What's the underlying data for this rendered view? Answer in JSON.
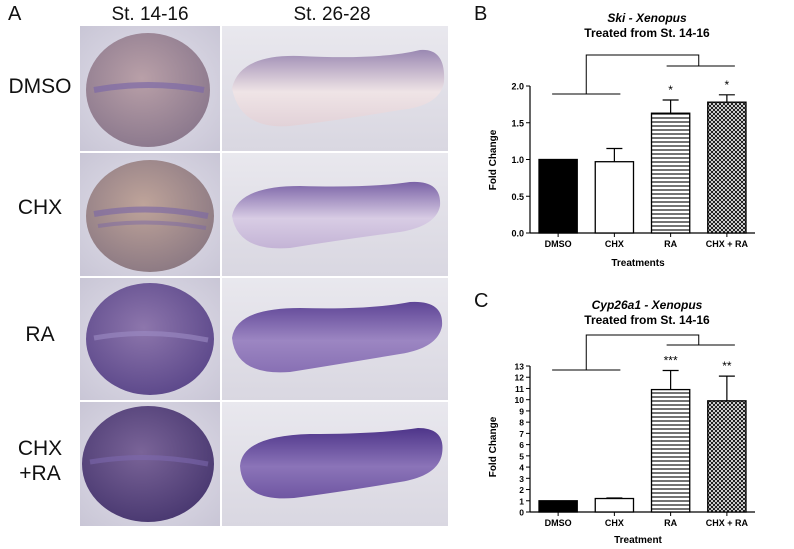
{
  "panel_a": {
    "letter": "A",
    "columns": [
      "St. 14-16",
      "St. 26-28"
    ],
    "rows": [
      {
        "label_lines": [
          "DMSO"
        ]
      },
      {
        "label_lines": [
          "CHX"
        ]
      },
      {
        "label_lines": [
          "RA"
        ]
      },
      {
        "label_lines": [
          "CHX",
          "+RA"
        ]
      }
    ],
    "stain_colors": {
      "dmso": "#a898b8",
      "chx": "#9a88b6",
      "ra": "#6e56a2",
      "chx_ra": "#5a3e96"
    }
  },
  "panel_b": {
    "letter": "B"
  },
  "panel_c": {
    "letter": "C"
  },
  "chart_data": [
    {
      "type": "bar",
      "title": "Ski - Xenopus",
      "subtitle": "Treated from St. 14-16",
      "xlabel": "Treatments",
      "ylabel": "Fold Change",
      "categories": [
        "DMSO",
        "CHX",
        "RA",
        "CHX + RA"
      ],
      "values": [
        1.0,
        0.97,
        1.63,
        1.78
      ],
      "errors": [
        0.0,
        0.18,
        0.18,
        0.1
      ],
      "ylim": [
        0,
        2.0
      ],
      "yticks": [
        "0.0",
        "0.5",
        "1.0",
        "1.5",
        "2.0"
      ],
      "ytick_values": [
        0,
        0.5,
        1.0,
        1.5,
        2.0
      ],
      "fills": [
        "solid",
        "white",
        "hlines",
        "crosshatch"
      ],
      "significance": [
        "",
        "",
        "*",
        "*"
      ],
      "comparison": "DMSO/CHX vs RA/CHX + RA"
    },
    {
      "type": "bar",
      "title": "Cyp26a1 - Xenopus",
      "subtitle": "Treated from  St. 14-16",
      "xlabel": "Treatment",
      "ylabel": "Fold  Change",
      "categories": [
        "DMSO",
        "CHX",
        "RA",
        "CHX + RA"
      ],
      "values": [
        1.0,
        1.2,
        10.9,
        9.9
      ],
      "errors": [
        0.0,
        0.05,
        1.7,
        2.2
      ],
      "ylim": [
        0,
        13
      ],
      "yticks": [
        "0",
        "1",
        "2",
        "3",
        "4",
        "5",
        "6",
        "7",
        "8",
        "9",
        "10",
        "11",
        "12",
        "13"
      ],
      "ytick_values": [
        0,
        1,
        2,
        3,
        4,
        5,
        6,
        7,
        8,
        9,
        10,
        11,
        12,
        13
      ],
      "fills": [
        "solid",
        "white",
        "hlines",
        "crosshatch"
      ],
      "significance": [
        "",
        "",
        "***",
        "**"
      ],
      "comparison": "DMSO/CHX vs RA/CHX + RA"
    }
  ]
}
